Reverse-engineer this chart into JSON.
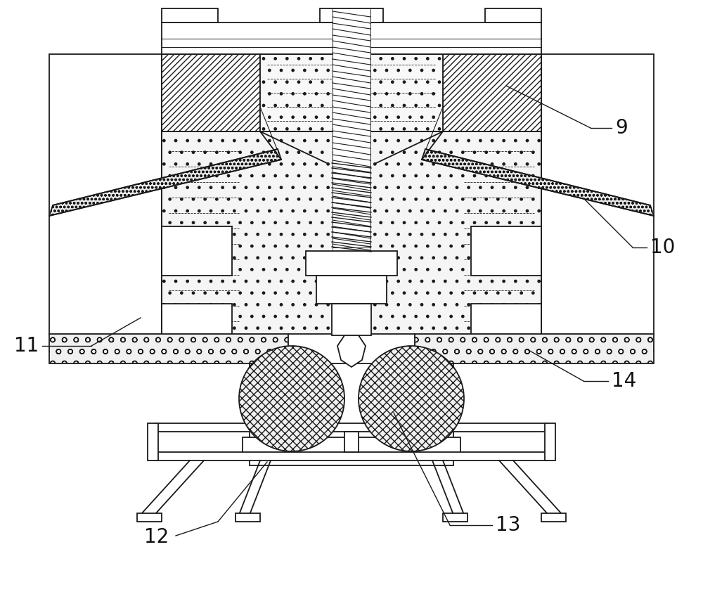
{
  "bg_color": "#ffffff",
  "lc": "#1a1a1a",
  "lw": 1.3,
  "label_9": "9",
  "label_10": "10",
  "label_11": "11",
  "label_12": "12",
  "label_13": "13",
  "label_14": "14",
  "figsize": [
    10.0,
    8.52
  ],
  "dpi": 100
}
